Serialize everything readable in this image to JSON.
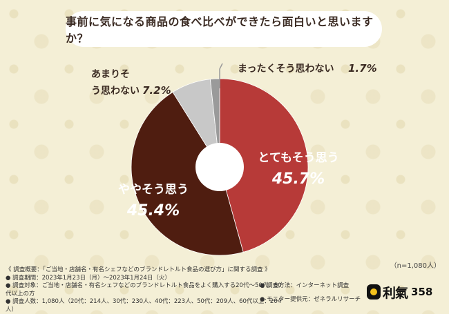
{
  "chart_data": {
    "type": "pie",
    "title": "事前に気になる商品の食べ比べができたら面白いと思いますか？",
    "slices": [
      {
        "label": "とてもそう思う",
        "value": 45.7,
        "display": "45.7%",
        "color": "#b73a38",
        "label_color": "#ffffff"
      },
      {
        "label": "ややそう思う",
        "value": 45.4,
        "display": "45.4%",
        "color": "#4f1d10",
        "label_color": "#ffffff"
      },
      {
        "label": "あまりそう思わない",
        "value": 7.2,
        "display": "7.2%",
        "color": "#c8c8c8",
        "label_color": "#3a2a22"
      },
      {
        "label": "まったくそう思わない",
        "value": 1.7,
        "display": "1.7%",
        "color": "#9a9a9a",
        "label_color": "#3a2a22"
      }
    ],
    "sample_size": "（n=1,080人）"
  },
  "footer": {
    "notes": [
      "《 調査概要：「ご当地・店舗名・有名シェフなどのブランドレトルト食品の選び方」に関する調査 》",
      "● 調査期間：2023年1月23日（月）〜2023年1月24日（火）",
      "● 調査対象：ご当地・店舗名・有名シェフなどのブランドレトルト食品をよく購入する20代〜50代、60代以上の方",
      "● 調査人数：1,080人（20代：214人、30代：230人、40代：223人、50代：209人、60代以上：204人）"
    ],
    "method": "● 調査方法：インターネット調査",
    "provider": "● モニター提供元：ゼネラルリサーチ"
  },
  "logo": {
    "text": "利氣",
    "number": "358"
  }
}
